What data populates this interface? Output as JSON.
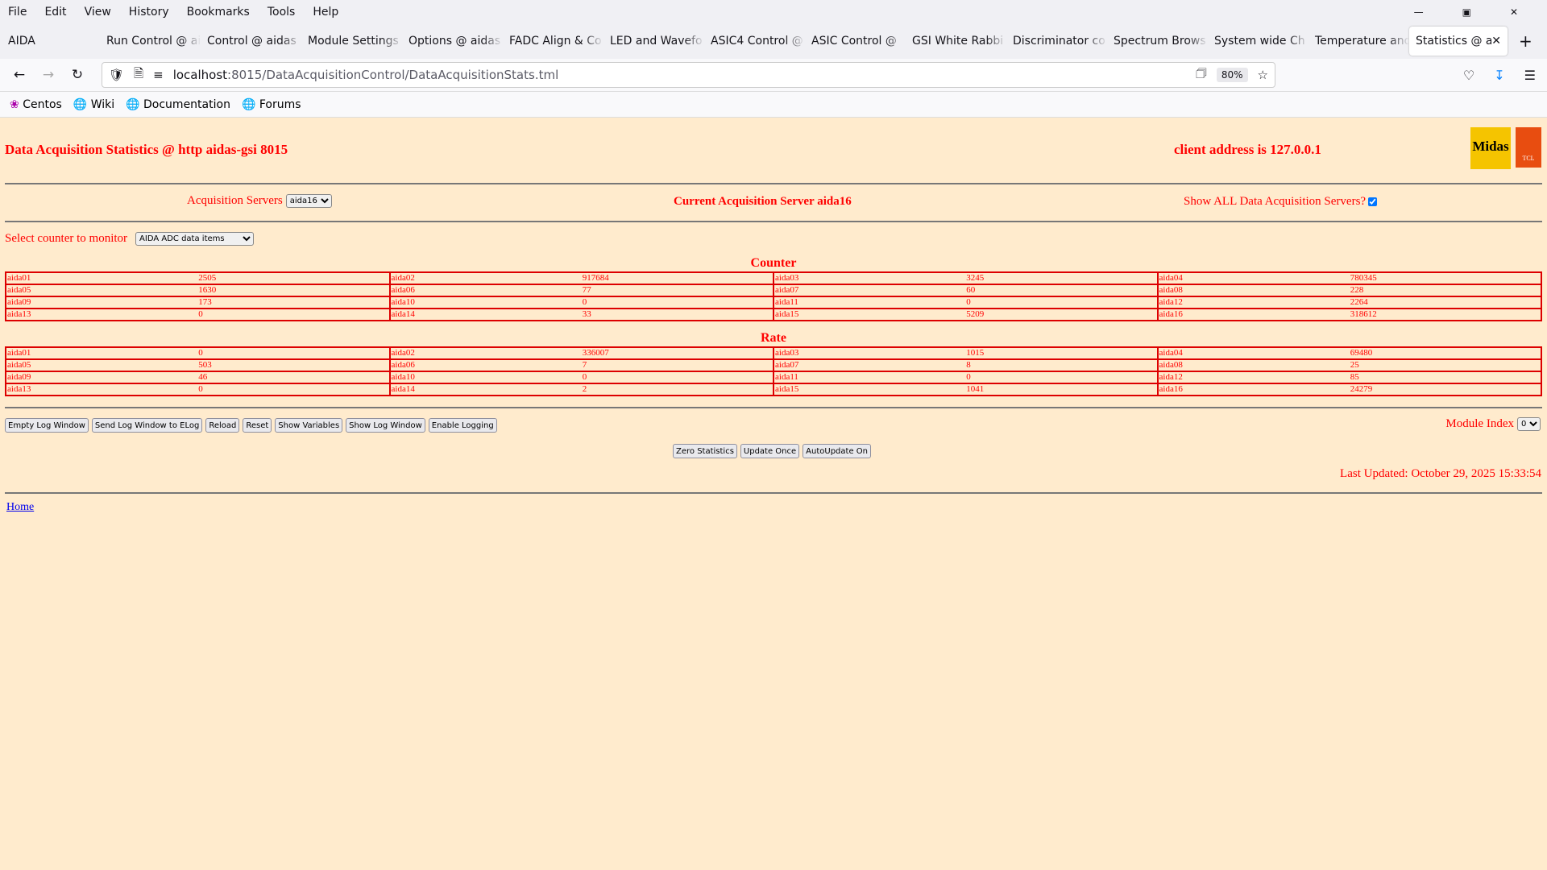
{
  "browser": {
    "menu": [
      "File",
      "Edit",
      "View",
      "History",
      "Bookmarks",
      "Tools",
      "Help"
    ],
    "window_title": "AIDA",
    "tabs": [
      "Run Control @ aidas",
      "Control @ aidas",
      "Module Settings",
      "Options @ aidas",
      "FADC Align & Co",
      "LED and Wavefo",
      "ASIC4 Control @",
      "ASIC Control @",
      "GSI White Rabbi",
      "Discriminator co",
      "Spectrum Brows",
      "System wide Ch",
      "Temperature and",
      "Statistics @ aida"
    ],
    "url_host": "localhost",
    "url_rest": ":8015/DataAcquisitionControl/DataAcquisitionStats.tml",
    "zoom": "80%",
    "bookmarks": [
      "Centos",
      "Wiki",
      "Documentation",
      "Forums"
    ]
  },
  "page": {
    "title": "Data Acquisition Statistics @ http aidas-gsi 8015",
    "client": "client address is 127.0.0.1",
    "logo_text": "Midas",
    "logo2_text": "TCL",
    "servers_label": "Acquisition Servers",
    "servers_value": "aida16",
    "current_server": "Current Acquisition Server aida16",
    "show_all_label": "Show ALL Data Acquisition Servers?",
    "show_all_checked": true,
    "counter_label": "Select counter to monitor",
    "counter_value": "AIDA ADC data items",
    "counter_heading": "Counter",
    "rate_heading": "Rate",
    "counter": [
      [
        [
          "aida01",
          "2505"
        ],
        [
          "aida02",
          "917684"
        ],
        [
          "aida03",
          "3245"
        ],
        [
          "aida04",
          "780345"
        ]
      ],
      [
        [
          "aida05",
          "1630"
        ],
        [
          "aida06",
          "77"
        ],
        [
          "aida07",
          "60"
        ],
        [
          "aida08",
          "228"
        ]
      ],
      [
        [
          "aida09",
          "173"
        ],
        [
          "aida10",
          "0"
        ],
        [
          "aida11",
          "0"
        ],
        [
          "aida12",
          "2264"
        ]
      ],
      [
        [
          "aida13",
          "0"
        ],
        [
          "aida14",
          "33"
        ],
        [
          "aida15",
          "5209"
        ],
        [
          "aida16",
          "318612"
        ]
      ]
    ],
    "rate": [
      [
        [
          "aida01",
          "0"
        ],
        [
          "aida02",
          "336007"
        ],
        [
          "aida03",
          "1015"
        ],
        [
          "aida04",
          "69480"
        ]
      ],
      [
        [
          "aida05",
          "503"
        ],
        [
          "aida06",
          "7"
        ],
        [
          "aida07",
          "8"
        ],
        [
          "aida08",
          "25"
        ]
      ],
      [
        [
          "aida09",
          "46"
        ],
        [
          "aida10",
          "0"
        ],
        [
          "aida11",
          "0"
        ],
        [
          "aida12",
          "85"
        ]
      ],
      [
        [
          "aida13",
          "0"
        ],
        [
          "aida14",
          "2"
        ],
        [
          "aida15",
          "1041"
        ],
        [
          "aida16",
          "24279"
        ]
      ]
    ],
    "buttons": [
      "Empty Log Window",
      "Send Log Window to ELog",
      "Reload",
      "Reset",
      "Show Variables",
      "Show Log Window",
      "Enable Logging"
    ],
    "module_index_label": "Module Index",
    "module_index_value": "0",
    "buttons2": [
      "Zero Statistics",
      "Update Once",
      "AutoUpdate On"
    ],
    "last_updated": "Last Updated: October 29, 2025 15:33:54",
    "home": "Home"
  }
}
